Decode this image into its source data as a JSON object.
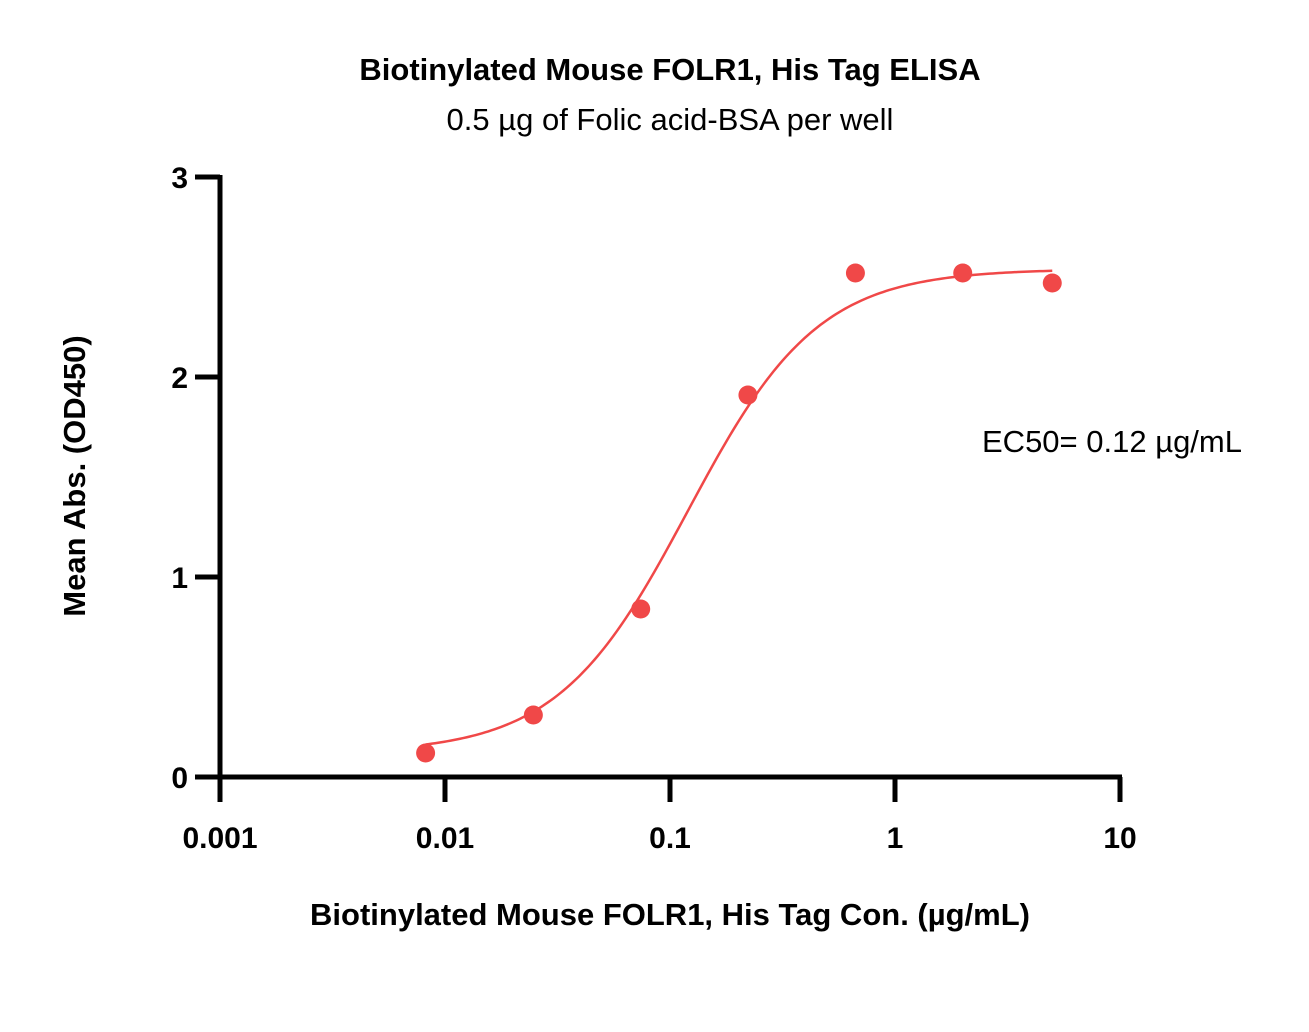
{
  "chart_data": {
    "type": "scatter",
    "title": "Biotinylated Mouse FOLR1, His Tag ELISA",
    "subtitle": "0.5 µg of Folic acid-BSA per well",
    "xlabel": "Biotinylated Mouse FOLR1, His Tag Con. (µg/mL)",
    "ylabel": "Mean Abs. (OD450)",
    "x_scale": "log",
    "xlim": [
      0.001,
      10
    ],
    "ylim": [
      0,
      3
    ],
    "x_ticks": [
      0.001,
      0.01,
      0.1,
      1,
      10
    ],
    "x_tick_labels": [
      "0.001",
      "0.01",
      "0.1",
      "1",
      "10"
    ],
    "y_ticks": [
      0,
      1,
      2,
      3
    ],
    "y_tick_labels": [
      "0",
      "1",
      "2",
      "3"
    ],
    "grid": false,
    "legend": "none",
    "color": "#f04848",
    "series": [
      {
        "x": [
          0.0082,
          0.0247,
          0.0741,
          0.222,
          0.667,
          2.0,
          5.0
        ],
        "y": [
          0.12,
          0.31,
          0.84,
          1.91,
          2.52,
          2.52,
          2.47
        ],
        "fit": {
          "model": "4PL",
          "bottom": 0.12,
          "top": 2.54,
          "ec50": 0.12,
          "hill": 1.5,
          "x_range": [
            0.0082,
            5.0
          ]
        }
      }
    ],
    "annotations": [
      {
        "text": "EC50= 0.12 µg/mL"
      }
    ]
  }
}
